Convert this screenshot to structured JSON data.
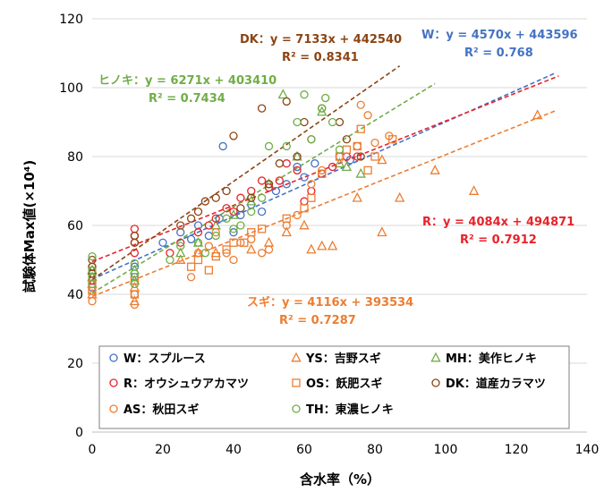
{
  "chart_data": {
    "type": "scatter",
    "xlabel": "含水率（%）",
    "ylabel": "試験体Max値(×10⁴)",
    "xlim": [
      0,
      140
    ],
    "ylim": [
      0,
      120
    ],
    "xticks": [
      "0",
      "20",
      "40",
      "60",
      "80",
      "100",
      "120",
      "140"
    ],
    "yticks": [
      "0",
      "20",
      "40",
      "60",
      "80",
      "100",
      "120"
    ],
    "grid": "horizontal",
    "legend_position": "bottom-inside",
    "series": [
      {
        "key": "W",
        "name": "W：スプルース",
        "marker": "circle",
        "color": "#4472c4",
        "points": [
          [
            0,
            42
          ],
          [
            0,
            44
          ],
          [
            0,
            46
          ],
          [
            12,
            45
          ],
          [
            12,
            48
          ],
          [
            20,
            55
          ],
          [
            25,
            58
          ],
          [
            28,
            56
          ],
          [
            30,
            60
          ],
          [
            33,
            57
          ],
          [
            36,
            62
          ],
          [
            37,
            83
          ],
          [
            40,
            58
          ],
          [
            42,
            63
          ],
          [
            45,
            66
          ],
          [
            48,
            64
          ],
          [
            52,
            70
          ],
          [
            55,
            72
          ],
          [
            58,
            77
          ],
          [
            60,
            74
          ],
          [
            63,
            78
          ],
          [
            70,
            80
          ],
          [
            73,
            79
          ]
        ]
      },
      {
        "key": "YS",
        "name": "YS：吉野スギ",
        "marker": "triangle",
        "color": "#ed7d31",
        "points": [
          [
            0,
            40
          ],
          [
            0,
            43
          ],
          [
            12,
            38
          ],
          [
            12,
            42
          ],
          [
            25,
            50
          ],
          [
            30,
            52
          ],
          [
            35,
            52
          ],
          [
            45,
            53
          ],
          [
            50,
            55
          ],
          [
            55,
            58
          ],
          [
            60,
            60
          ],
          [
            62,
            53
          ],
          [
            65,
            54
          ],
          [
            68,
            54
          ],
          [
            75,
            68
          ],
          [
            82,
            58
          ],
          [
            82,
            79
          ],
          [
            87,
            68
          ],
          [
            97,
            76
          ],
          [
            108,
            70
          ],
          [
            126,
            92
          ]
        ]
      },
      {
        "key": "MH",
        "name": "MH：美作ヒノキ",
        "marker": "triangle",
        "color": "#70ad47",
        "points": [
          [
            0,
            45
          ],
          [
            0,
            47
          ],
          [
            12,
            44
          ],
          [
            12,
            47
          ],
          [
            25,
            52
          ],
          [
            30,
            55
          ],
          [
            35,
            60
          ],
          [
            40,
            63
          ],
          [
            45,
            67
          ],
          [
            50,
            72
          ],
          [
            54,
            98
          ],
          [
            58,
            80
          ],
          [
            65,
            93
          ],
          [
            70,
            78
          ],
          [
            72,
            77
          ],
          [
            76,
            75
          ]
        ]
      },
      {
        "key": "R",
        "name": "R：オウシュウアカマツ",
        "marker": "circle",
        "color": "#e8222a",
        "points": [
          [
            0,
            44
          ],
          [
            0,
            46
          ],
          [
            0,
            48
          ],
          [
            12,
            52
          ],
          [
            12,
            55
          ],
          [
            12,
            57
          ],
          [
            12,
            59
          ],
          [
            22,
            52
          ],
          [
            25,
            55
          ],
          [
            30,
            58
          ],
          [
            33,
            60
          ],
          [
            35,
            62
          ],
          [
            38,
            65
          ],
          [
            40,
            64
          ],
          [
            42,
            68
          ],
          [
            45,
            70
          ],
          [
            48,
            73
          ],
          [
            50,
            71
          ],
          [
            53,
            73
          ],
          [
            55,
            78
          ],
          [
            58,
            76
          ],
          [
            60,
            67
          ],
          [
            62,
            70
          ],
          [
            65,
            75
          ],
          [
            68,
            77
          ],
          [
            72,
            80
          ],
          [
            75,
            80
          ]
        ]
      },
      {
        "key": "OS",
        "name": "OS：飫肥スギ",
        "marker": "square",
        "color": "#ed7d31",
        "points": [
          [
            0,
            41
          ],
          [
            0,
            43
          ],
          [
            12,
            40
          ],
          [
            12,
            44
          ],
          [
            28,
            48
          ],
          [
            30,
            50
          ],
          [
            33,
            47
          ],
          [
            35,
            51
          ],
          [
            38,
            53
          ],
          [
            40,
            55
          ],
          [
            43,
            55
          ],
          [
            45,
            58
          ],
          [
            48,
            59
          ],
          [
            55,
            62
          ],
          [
            60,
            65
          ],
          [
            62,
            68
          ],
          [
            65,
            75
          ],
          [
            70,
            80
          ],
          [
            72,
            82
          ],
          [
            75,
            83
          ],
          [
            76,
            88
          ],
          [
            78,
            76
          ],
          [
            80,
            80
          ],
          [
            85,
            85
          ]
        ]
      },
      {
        "key": "DK",
        "name": "DK：道産カラマツ",
        "marker": "circle",
        "color": "#8b4513",
        "points": [
          [
            0,
            46
          ],
          [
            0,
            48
          ],
          [
            0,
            50
          ],
          [
            12,
            55
          ],
          [
            12,
            57
          ],
          [
            25,
            60
          ],
          [
            28,
            62
          ],
          [
            30,
            64
          ],
          [
            32,
            67
          ],
          [
            35,
            68
          ],
          [
            38,
            70
          ],
          [
            40,
            86
          ],
          [
            42,
            65
          ],
          [
            45,
            68
          ],
          [
            48,
            94
          ],
          [
            50,
            72
          ],
          [
            53,
            78
          ],
          [
            55,
            96
          ],
          [
            58,
            80
          ],
          [
            60,
            90
          ],
          [
            62,
            85
          ],
          [
            65,
            94
          ],
          [
            70,
            90
          ],
          [
            72,
            85
          ],
          [
            76,
            80
          ]
        ]
      },
      {
        "key": "AS",
        "name": "AS：秋田スギ",
        "marker": "circle",
        "color": "#ed7d31",
        "points": [
          [
            0,
            38
          ],
          [
            0,
            41
          ],
          [
            12,
            37
          ],
          [
            12,
            40
          ],
          [
            28,
            45
          ],
          [
            30,
            52
          ],
          [
            33,
            54
          ],
          [
            35,
            58
          ],
          [
            38,
            52
          ],
          [
            40,
            50
          ],
          [
            42,
            55
          ],
          [
            45,
            56
          ],
          [
            48,
            52
          ],
          [
            50,
            53
          ],
          [
            55,
            60
          ],
          [
            58,
            63
          ],
          [
            62,
            72
          ],
          [
            65,
            76
          ],
          [
            70,
            80
          ],
          [
            75,
            83
          ],
          [
            76,
            95
          ],
          [
            78,
            92
          ],
          [
            80,
            84
          ],
          [
            84,
            86
          ]
        ]
      },
      {
        "key": "TH",
        "name": "TH：東濃ヒノキ",
        "marker": "circle",
        "color": "#70ad47",
        "points": [
          [
            0,
            43
          ],
          [
            0,
            45
          ],
          [
            0,
            47
          ],
          [
            0,
            51
          ],
          [
            12,
            43
          ],
          [
            12,
            46
          ],
          [
            12,
            49
          ],
          [
            22,
            50
          ],
          [
            25,
            54
          ],
          [
            30,
            55
          ],
          [
            32,
            52
          ],
          [
            35,
            57
          ],
          [
            38,
            62
          ],
          [
            40,
            59
          ],
          [
            42,
            60
          ],
          [
            45,
            64
          ],
          [
            48,
            68
          ],
          [
            50,
            83
          ],
          [
            55,
            83
          ],
          [
            58,
            90
          ],
          [
            60,
            98
          ],
          [
            62,
            85
          ],
          [
            65,
            94
          ],
          [
            66,
            97
          ],
          [
            68,
            90
          ],
          [
            70,
            82
          ]
        ]
      }
    ],
    "trendlines": [
      {
        "key": "W",
        "equation": "W：y = 4570x + 443596",
        "r2": "R² = 0.768",
        "slope": 0.457,
        "intercept": 44.3596,
        "x_range": [
          0,
          131
        ],
        "color": "#4472c4"
      },
      {
        "key": "R",
        "equation": "R：y = 4084x + 494871",
        "r2": "R² = 0.7912",
        "slope": 0.4084,
        "intercept": 49.4871,
        "x_range": [
          0,
          132
        ],
        "color": "#e8222a"
      },
      {
        "key": "DK",
        "equation": "DK：y = 7133x + 442540",
        "r2": "R² = 0.8341",
        "slope": 0.7133,
        "intercept": 44.254,
        "x_range": [
          0,
          87
        ],
        "color": "#8b4513"
      },
      {
        "key": "HINOKI",
        "equation": "ヒノキ：y = 6271x + 403410",
        "r2": "R² = 0.7434",
        "slope": 0.6271,
        "intercept": 40.341,
        "x_range": [
          0,
          97
        ],
        "color": "#70ad47"
      },
      {
        "key": "SUGI",
        "equation": "スギ：y = 4116x + 393534",
        "r2": "R² = 0.7287",
        "slope": 0.4116,
        "intercept": 39.3534,
        "x_range": [
          0,
          131
        ],
        "color": "#ed7d31"
      }
    ]
  }
}
